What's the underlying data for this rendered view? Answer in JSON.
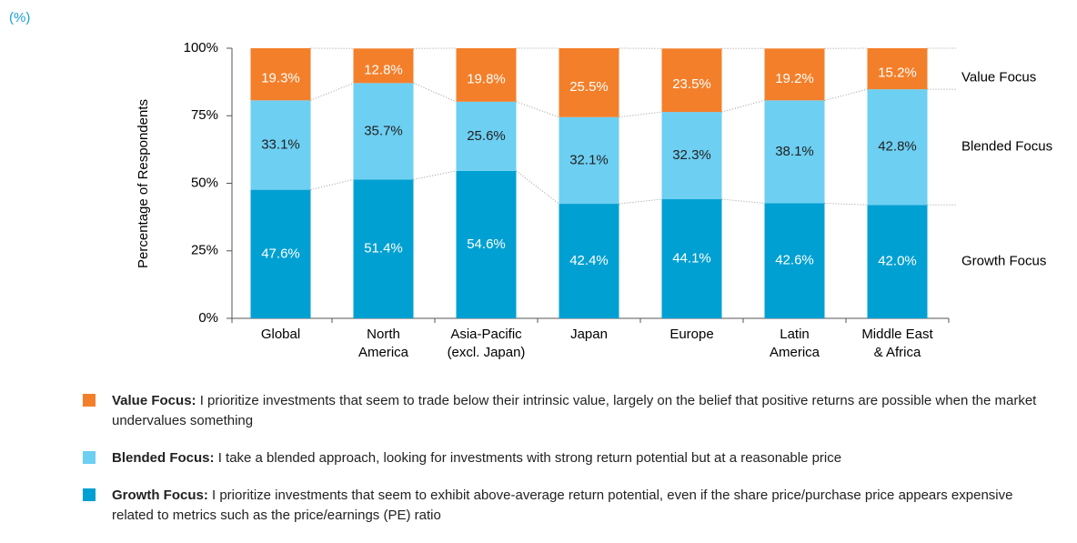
{
  "chart_data": {
    "type": "stacked_bar",
    "unit_note": "(%)",
    "ylabel": "Percentage of Respondents",
    "categories": [
      [
        "Global"
      ],
      [
        "North",
        "America"
      ],
      [
        "Asia-Pacific",
        "(excl. Japan)"
      ],
      [
        "Japan"
      ],
      [
        "Europe"
      ],
      [
        "Latin",
        "America"
      ],
      [
        "Middle East",
        "& Africa"
      ]
    ],
    "ylim": [
      0,
      100
    ],
    "yticks": [
      {
        "value": 0,
        "label": "0%"
      },
      {
        "value": 25,
        "label": "25%"
      },
      {
        "value": 50,
        "label": "50%"
      },
      {
        "value": 75,
        "label": "75%"
      },
      {
        "value": 100,
        "label": "100%"
      }
    ],
    "series": [
      {
        "name": "Growth Focus",
        "color": "#00a0d2",
        "label_color": "#ffffff",
        "values": [
          47.6,
          51.4,
          54.6,
          42.4,
          44.1,
          42.6,
          42.0
        ],
        "value_labels": [
          "47.6%",
          "51.4%",
          "54.6%",
          "42.4%",
          "44.1%",
          "42.6%",
          "42.0%"
        ]
      },
      {
        "name": "Blended Focus",
        "color": "#6dcff2",
        "label_color": "#222222",
        "values": [
          33.1,
          35.7,
          25.6,
          32.1,
          32.3,
          38.1,
          42.8
        ],
        "value_labels": [
          "33.1%",
          "35.7%",
          "25.6%",
          "32.1%",
          "32.3%",
          "38.1%",
          "42.8%"
        ]
      },
      {
        "name": "Value Focus",
        "color": "#f47f2a",
        "label_color": "#ffffff",
        "values": [
          19.3,
          12.8,
          19.8,
          25.5,
          23.5,
          19.2,
          15.2
        ],
        "value_labels": [
          "19.3%",
          "12.8%",
          "19.8%",
          "25.5%",
          "23.5%",
          "19.2%",
          "15.2%"
        ]
      }
    ],
    "legend": [
      {
        "term": "Value Focus:",
        "text": "I prioritize investments that seem to trade below their intrinsic value, largely on the belief that positive returns are possible when the market undervalues something"
      },
      {
        "term": "Blended Focus:",
        "text": "I take a blended approach, looking for investments with strong return potential but at a reasonable price"
      },
      {
        "term": "Growth Focus:",
        "text": "I prioritize investments that seem to exhibit above-average return potential, even if the share price/purchase price appears expensive related to metrics such as the price/earnings (PE) ratio"
      }
    ]
  }
}
